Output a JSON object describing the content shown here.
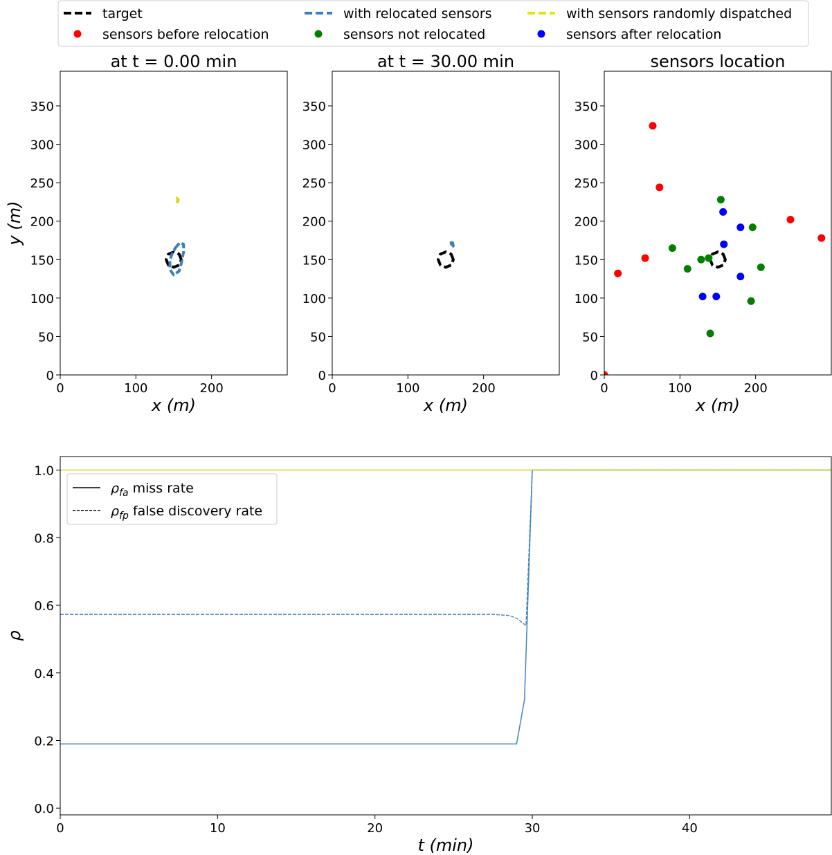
{
  "colors": {
    "target": "#000000",
    "relocated": "#3a7fbf",
    "random": "#d8d80a",
    "before": "#ff0000",
    "not_relocated": "#008000",
    "after": "#0000ff",
    "miss_line": "#4a8bc4"
  },
  "top_legend": {
    "entries": [
      {
        "label": "target",
        "marker": "dashed-line",
        "color": "#000000"
      },
      {
        "label": "with relocated sensors",
        "marker": "dashed-line",
        "color": "#3a7fbf"
      },
      {
        "label": "with sensors randomly dispatched",
        "marker": "dashed-line",
        "color": "#e6e600"
      },
      {
        "label": "sensors before relocation",
        "marker": "dot",
        "color": "#ff0000"
      },
      {
        "label": "sensors not relocated",
        "marker": "dot",
        "color": "#008000"
      },
      {
        "label": "sensors after relocation",
        "marker": "dot",
        "color": "#0000ff"
      }
    ]
  },
  "chart_data": [
    {
      "type": "line",
      "title": "at t = 0.00 min",
      "xlabel": "x (m)",
      "ylabel": "y (m)",
      "xlim": [
        0,
        300
      ],
      "ylim": [
        0,
        395
      ],
      "xticks": [
        0,
        100,
        200
      ],
      "yticks": [
        0,
        50,
        100,
        150,
        200,
        250,
        300,
        350
      ],
      "series": [
        {
          "name": "target",
          "style": "dashed",
          "color": "#000000",
          "closed": true,
          "x": [
            160,
            157.1,
            150,
            142.9,
            140,
            142.9,
            150,
            157.1
          ],
          "y": [
            150,
            157.1,
            160,
            157.1,
            150,
            142.9,
            140,
            142.9
          ]
        },
        {
          "name": "with relocated sensors",
          "style": "dashed",
          "color": "#3a7fbf",
          "closed": true,
          "x": [
            152,
            158,
            163,
            163,
            160,
            157,
            150,
            145,
            145,
            149
          ],
          "y": [
            165,
            172,
            170,
            160,
            145,
            135,
            130,
            137,
            150,
            160
          ]
        },
        {
          "name": "with sensors randomly dispatched",
          "style": "dashed",
          "color": "#d8d80a",
          "closed": true,
          "x": [
            154,
            156,
            155,
            153
          ],
          "y": [
            230,
            228,
            225,
            228
          ]
        }
      ]
    },
    {
      "type": "line",
      "title": "at t = 30.00 min",
      "xlabel": "x (m)",
      "ylabel": "",
      "xlim": [
        0,
        300
      ],
      "ylim": [
        0,
        395
      ],
      "xticks": [
        0,
        100,
        200
      ],
      "yticks": [
        0,
        50,
        100,
        150,
        200,
        250,
        300,
        350
      ],
      "series": [
        {
          "name": "target",
          "style": "dashed",
          "color": "#000000",
          "closed": true,
          "x": [
            160,
            157.1,
            150,
            142.9,
            140,
            142.9,
            150,
            157.1
          ],
          "y": [
            150,
            157.1,
            160,
            157.1,
            150,
            142.9,
            140,
            142.9
          ]
        },
        {
          "name": "with relocated sensors",
          "style": "dashed",
          "color": "#3a7fbf",
          "closed": true,
          "x": [
            157,
            159,
            160,
            158
          ],
          "y": [
            172,
            172,
            168,
            166
          ]
        }
      ]
    },
    {
      "type": "scatter",
      "title": "sensors location",
      "xlabel": "x (m)",
      "ylabel": "",
      "xlim": [
        0,
        300
      ],
      "ylim": [
        0,
        395
      ],
      "xticks": [
        0,
        100,
        200
      ],
      "yticks": [
        0,
        50,
        100,
        150,
        200,
        250,
        300,
        350
      ],
      "target": {
        "x": [
          160,
          157.1,
          150,
          142.9,
          140,
          142.9,
          150,
          157.1
        ],
        "y": [
          150,
          157.1,
          160,
          157.1,
          150,
          142.9,
          140,
          142.9
        ]
      },
      "series": [
        {
          "name": "sensors before relocation",
          "color": "#ff0000",
          "points": [
            [
              0,
              0
            ],
            [
              18,
              132
            ],
            [
              54,
              152
            ],
            [
              64,
              324
            ],
            [
              73,
              244
            ],
            [
              246,
              202
            ],
            [
              287,
              178
            ]
          ]
        },
        {
          "name": "sensors not relocated",
          "color": "#008000",
          "points": [
            [
              90,
              165
            ],
            [
              110,
              138
            ],
            [
              128,
              150
            ],
            [
              138,
              152
            ],
            [
              140,
              54
            ],
            [
              154,
              228
            ],
            [
              194,
              96
            ],
            [
              196,
              192
            ],
            [
              207,
              140
            ]
          ]
        },
        {
          "name": "sensors after relocation",
          "color": "#0000ff",
          "points": [
            [
              130,
              102
            ],
            [
              148,
              102
            ],
            [
              157,
              212
            ],
            [
              158,
              170
            ],
            [
              180,
              192
            ],
            [
              180,
              128
            ]
          ]
        }
      ]
    },
    {
      "type": "line",
      "title": "",
      "xlabel": "t (min)",
      "ylabel": "ρ",
      "xlim": [
        0,
        49
      ],
      "ylim": [
        -0.02,
        1.04
      ],
      "xticks": [
        0,
        10,
        20,
        30,
        40
      ],
      "yticks": [
        0.0,
        0.2,
        0.4,
        0.6,
        0.8,
        1.0
      ],
      "ytick_labels": [
        "0.0",
        "0.2",
        "0.4",
        "0.6",
        "0.8",
        "1.0"
      ],
      "legend": {
        "location": "upper-left",
        "entries": [
          {
            "label_main": "ρ",
            "label_sub": "fa",
            "label_rest": " miss rate",
            "style": "solid"
          },
          {
            "label_main": "ρ",
            "label_sub": "fp",
            "label_rest": " false discovery rate",
            "style": "dashed"
          }
        ]
      },
      "series": [
        {
          "name": "ρfa miss rate (relocated)",
          "style": "solid",
          "color": "#4a8bc4",
          "x": [
            0,
            29,
            29.5,
            30,
            49
          ],
          "y": [
            0.19,
            0.19,
            0.32,
            1.0,
            1.0
          ]
        },
        {
          "name": "ρfp false discovery rate (relocated)",
          "style": "dashed",
          "color": "#3a7fbf",
          "x": [
            0,
            27.5,
            28.5,
            29,
            29.6,
            30,
            49
          ],
          "y": [
            0.573,
            0.573,
            0.57,
            0.562,
            0.54,
            1.0,
            1.0
          ]
        },
        {
          "name": "randomly dispatched",
          "style": "solid",
          "color": "#d8d80a",
          "x": [
            0,
            49
          ],
          "y": [
            1.0,
            1.0
          ]
        }
      ]
    }
  ]
}
